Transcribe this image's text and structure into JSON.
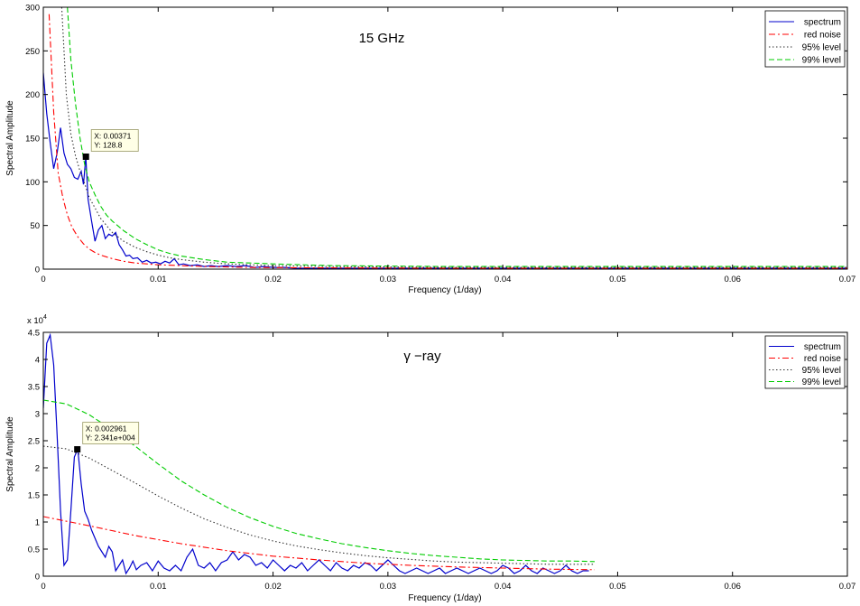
{
  "chart_data": [
    {
      "type": "line",
      "title": "15 GHz",
      "xlabel": "Frequency (1/day)",
      "ylabel": "Spectral Amplitude",
      "xlim": [
        0,
        0.07
      ],
      "ylim": [
        0,
        300
      ],
      "xticks": [
        "0",
        "0.01",
        "0.02",
        "0.03",
        "0.04",
        "0.05",
        "0.06",
        "0.07"
      ],
      "yticks": [
        "0",
        "50",
        "100",
        "150",
        "200",
        "250",
        "300"
      ],
      "y_exponent": "",
      "legend_position": "top-right",
      "grid": false,
      "series": [
        {
          "name": "spectrum",
          "color": "#0000cc",
          "style": "solid",
          "x": [
            0,
            0.0003,
            0.0006,
            0.0009,
            0.0012,
            0.0015,
            0.0018,
            0.0021,
            0.0024,
            0.0027,
            0.003,
            0.0033,
            0.0035,
            0.0037,
            0.0039,
            0.0042,
            0.0045,
            0.0048,
            0.0051,
            0.0054,
            0.0057,
            0.006,
            0.0063,
            0.0066,
            0.0069,
            0.0072,
            0.0075,
            0.0078,
            0.0082,
            0.0086,
            0.009,
            0.0094,
            0.0098,
            0.0102,
            0.0106,
            0.011,
            0.0114,
            0.0118,
            0.0122,
            0.0128,
            0.0134,
            0.014,
            0.0146,
            0.0152,
            0.016,
            0.0168,
            0.0176,
            0.0184,
            0.0192,
            0.02,
            0.021,
            0.022,
            0.025,
            0.03,
            0.035,
            0.04,
            0.045,
            0.05,
            0.055,
            0.06,
            0.065,
            0.07
          ],
          "y": [
            225,
            178,
            145,
            115,
            133,
            162,
            133,
            120,
            115,
            105,
            103,
            112,
            97,
            128.8,
            80,
            55,
            32,
            45,
            50,
            35,
            40,
            38,
            42,
            28,
            22,
            15,
            16,
            12,
            13,
            8,
            10,
            7,
            8,
            6,
            9,
            7,
            12,
            5,
            6,
            4,
            5,
            3,
            4,
            3,
            4,
            3,
            4,
            2,
            3,
            2,
            2,
            1,
            1,
            1,
            1,
            1,
            1,
            1,
            1,
            1,
            1,
            1
          ]
        },
        {
          "name": "red noise",
          "color": "#ff0000",
          "style": "dashdot",
          "x": [
            0.0005,
            0.0009,
            0.0013,
            0.0017,
            0.0021,
            0.0025,
            0.003,
            0.0035,
            0.004,
            0.0045,
            0.005,
            0.006,
            0.007,
            0.008,
            0.009,
            0.01,
            0.012,
            0.014,
            0.016,
            0.018,
            0.02,
            0.025,
            0.03,
            0.035,
            0.04,
            0.045,
            0.05,
            0.055,
            0.06,
            0.065,
            0.07
          ],
          "y": [
            292,
            180,
            110,
            82,
            62,
            48,
            37,
            29,
            23,
            19,
            16,
            12,
            9,
            7,
            6,
            5,
            4,
            3,
            2.5,
            2,
            1.8,
            1.4,
            1.2,
            1,
            1,
            1,
            1,
            1,
            1,
            1,
            1
          ]
        },
        {
          "name": "95% level",
          "color": "#333333",
          "style": "dotted",
          "x": [
            0.0016,
            0.002,
            0.0024,
            0.0028,
            0.0032,
            0.0036,
            0.004,
            0.0045,
            0.005,
            0.006,
            0.007,
            0.008,
            0.009,
            0.01,
            0.011,
            0.012,
            0.014,
            0.016,
            0.018,
            0.02,
            0.025,
            0.03,
            0.035,
            0.04,
            0.045,
            0.05,
            0.055,
            0.06,
            0.065,
            0.07
          ],
          "y": [
            300,
            200,
            155,
            130,
            112,
            98,
            82,
            70,
            58,
            42,
            32,
            25,
            20,
            16,
            13,
            11,
            8,
            6,
            5,
            4,
            3,
            2.5,
            2,
            2,
            2,
            2,
            2,
            2,
            2,
            2
          ]
        },
        {
          "name": "99% level",
          "color": "#00cc00",
          "style": "dashed",
          "x": [
            0.0021,
            0.0024,
            0.0028,
            0.0032,
            0.0036,
            0.004,
            0.0045,
            0.005,
            0.0055,
            0.006,
            0.007,
            0.008,
            0.009,
            0.01,
            0.011,
            0.012,
            0.014,
            0.016,
            0.018,
            0.02,
            0.025,
            0.03,
            0.035,
            0.04,
            0.045,
            0.05,
            0.055,
            0.06,
            0.065,
            0.07
          ],
          "y": [
            300,
            240,
            190,
            150,
            120,
            100,
            85,
            72,
            62,
            55,
            44,
            35,
            28,
            22,
            18,
            15,
            11,
            8,
            7,
            6,
            4,
            3.5,
            3,
            3,
            3,
            3,
            3,
            3,
            3,
            3
          ]
        }
      ],
      "datatip": {
        "x": 0.00371,
        "y": 128.8,
        "label_x": "X: 0.00371",
        "label_y": "Y: 128.8"
      }
    },
    {
      "type": "line",
      "title": "γ −ray",
      "xlabel": "Frequency (1/day)",
      "ylabel": "Spectral Amplitude",
      "xlim": [
        0,
        0.07
      ],
      "ylim": [
        0,
        4.5
      ],
      "xticks": [
        "0",
        "0.01",
        "0.02",
        "0.03",
        "0.04",
        "0.05",
        "0.06",
        "0.07"
      ],
      "yticks": [
        "0",
        "0.5",
        "1",
        "1.5",
        "2",
        "2.5",
        "3",
        "3.5",
        "4",
        "4.5"
      ],
      "y_exponent": "x 10",
      "y_exponent_power": "4",
      "legend_position": "top-right",
      "grid": false,
      "series": [
        {
          "name": "spectrum",
          "color": "#0000cc",
          "style": "solid",
          "x": [
            0,
            0.0003,
            0.0006,
            0.0009,
            0.0012,
            0.0015,
            0.0018,
            0.0021,
            0.0024,
            0.0027,
            0.003,
            0.0033,
            0.0036,
            0.0039,
            0.0042,
            0.0045,
            0.0048,
            0.0051,
            0.0054,
            0.0057,
            0.006,
            0.0063,
            0.0066,
            0.0069,
            0.0072,
            0.0075,
            0.0078,
            0.0081,
            0.0085,
            0.009,
            0.0095,
            0.01,
            0.0105,
            0.011,
            0.0115,
            0.012,
            0.0125,
            0.013,
            0.0135,
            0.014,
            0.0145,
            0.015,
            0.0155,
            0.016,
            0.0165,
            0.017,
            0.0175,
            0.018,
            0.0185,
            0.019,
            0.0195,
            0.02,
            0.0205,
            0.021,
            0.0215,
            0.022,
            0.0225,
            0.023,
            0.0235,
            0.024,
            0.0245,
            0.025,
            0.0255,
            0.026,
            0.0265,
            0.027,
            0.0275,
            0.028,
            0.0285,
            0.029,
            0.0295,
            0.03,
            0.0305,
            0.031,
            0.0315,
            0.032,
            0.0325,
            0.033,
            0.0335,
            0.034,
            0.0345,
            0.035,
            0.0355,
            0.036,
            0.0365,
            0.037,
            0.0375,
            0.038,
            0.0385,
            0.039,
            0.0395,
            0.04,
            0.0405,
            0.041,
            0.0415,
            0.042,
            0.0425,
            0.043,
            0.0435,
            0.044,
            0.0445,
            0.045,
            0.0455,
            0.046,
            0.0465,
            0.047,
            0.0475
          ],
          "y": [
            3.1,
            4.3,
            4.45,
            3.9,
            2.6,
            1.2,
            0.2,
            0.3,
            1.2,
            2.2,
            2.341,
            1.7,
            1.2,
            1.05,
            0.85,
            0.7,
            0.55,
            0.45,
            0.35,
            0.55,
            0.45,
            0.1,
            0.2,
            0.3,
            0.05,
            0.15,
            0.28,
            0.12,
            0.2,
            0.25,
            0.1,
            0.28,
            0.15,
            0.1,
            0.2,
            0.1,
            0.35,
            0.5,
            0.2,
            0.15,
            0.25,
            0.1,
            0.25,
            0.3,
            0.45,
            0.3,
            0.4,
            0.35,
            0.2,
            0.25,
            0.15,
            0.3,
            0.2,
            0.1,
            0.2,
            0.15,
            0.25,
            0.1,
            0.2,
            0.3,
            0.2,
            0.1,
            0.25,
            0.15,
            0.1,
            0.2,
            0.15,
            0.25,
            0.2,
            0.1,
            0.2,
            0.3,
            0.2,
            0.1,
            0.05,
            0.1,
            0.15,
            0.1,
            0.05,
            0.1,
            0.15,
            0.05,
            0.1,
            0.15,
            0.1,
            0.05,
            0.1,
            0.15,
            0.1,
            0.05,
            0.1,
            0.2,
            0.15,
            0.05,
            0.1,
            0.2,
            0.1,
            0.05,
            0.15,
            0.1,
            0.05,
            0.1,
            0.2,
            0.1,
            0.05,
            0.1,
            0.1
          ]
        },
        {
          "name": "red noise",
          "color": "#ff0000",
          "style": "dashdot",
          "x": [
            0,
            0.004,
            0.008,
            0.012,
            0.016,
            0.02,
            0.024,
            0.028,
            0.032,
            0.036,
            0.04,
            0.044,
            0.048
          ],
          "y": [
            1.1,
            0.93,
            0.75,
            0.6,
            0.47,
            0.37,
            0.3,
            0.24,
            0.2,
            0.17,
            0.15,
            0.13,
            0.12
          ]
        },
        {
          "name": "95% level",
          "color": "#333333",
          "style": "dotted",
          "x": [
            0,
            0.002,
            0.004,
            0.006,
            0.008,
            0.01,
            0.012,
            0.014,
            0.016,
            0.018,
            0.02,
            0.022,
            0.024,
            0.026,
            0.028,
            0.03,
            0.032,
            0.034,
            0.036,
            0.038,
            0.04,
            0.042,
            0.044,
            0.046,
            0.048
          ],
          "y": [
            2.4,
            2.35,
            2.18,
            1.95,
            1.72,
            1.48,
            1.26,
            1.06,
            0.9,
            0.76,
            0.65,
            0.56,
            0.49,
            0.43,
            0.38,
            0.34,
            0.31,
            0.28,
            0.26,
            0.25,
            0.24,
            0.23,
            0.22,
            0.22,
            0.22
          ]
        },
        {
          "name": "99% level",
          "color": "#00cc00",
          "style": "dashed",
          "x": [
            0,
            0.002,
            0.004,
            0.006,
            0.008,
            0.01,
            0.012,
            0.014,
            0.016,
            0.018,
            0.02,
            0.022,
            0.024,
            0.026,
            0.028,
            0.03,
            0.032,
            0.034,
            0.036,
            0.038,
            0.04,
            0.042,
            0.044,
            0.046,
            0.048
          ],
          "y": [
            3.25,
            3.18,
            2.98,
            2.7,
            2.4,
            2.07,
            1.76,
            1.5,
            1.27,
            1.08,
            0.92,
            0.79,
            0.69,
            0.6,
            0.53,
            0.47,
            0.42,
            0.38,
            0.35,
            0.32,
            0.3,
            0.29,
            0.28,
            0.28,
            0.27
          ]
        }
      ],
      "datatip": {
        "x": 0.002961,
        "y": 2.341,
        "label_x": "X: 0.002961",
        "label_y": "Y: 2.341e+004"
      }
    }
  ]
}
